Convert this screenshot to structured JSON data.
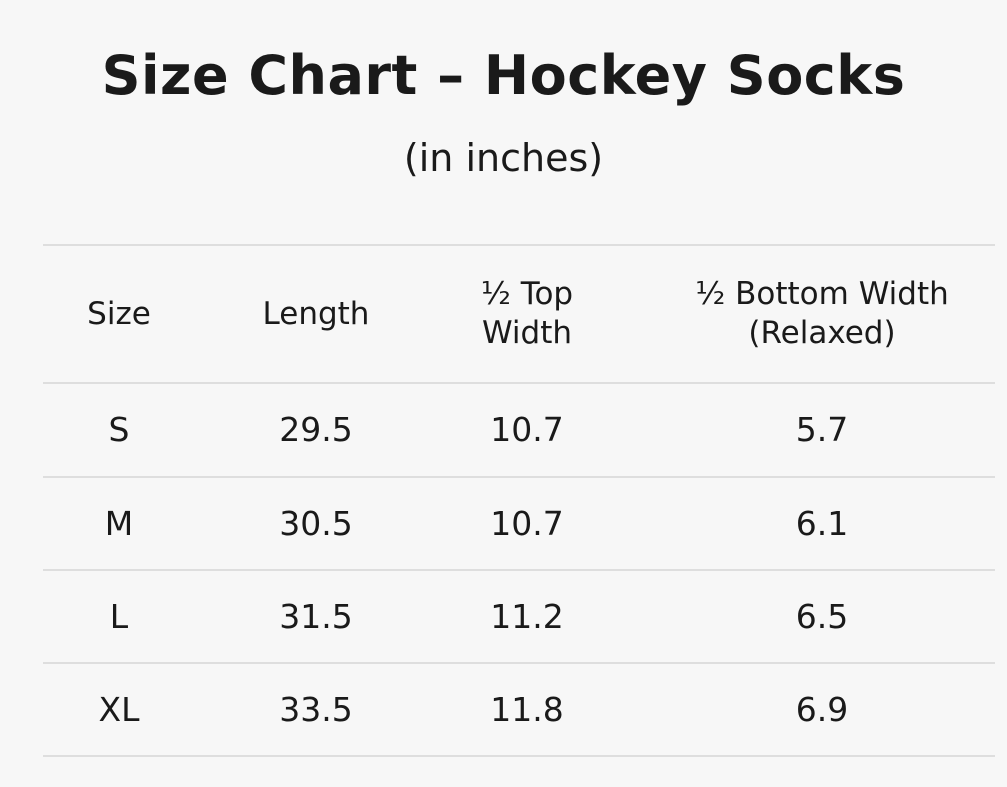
{
  "header": {
    "title": "Size Chart – Hockey Socks",
    "subtitle": "(in inches)"
  },
  "table": {
    "columns": [
      "Size",
      "Length",
      "½ Top Width",
      "½ Bottom Width (Relaxed)"
    ],
    "rows": [
      [
        "S",
        "29.5",
        "10.7",
        "5.7"
      ],
      [
        "M",
        "30.5",
        "10.7",
        "6.1"
      ],
      [
        "L",
        "31.5",
        "11.2",
        "6.5"
      ],
      [
        "XL",
        "33.5",
        "11.8",
        "6.9"
      ]
    ]
  }
}
